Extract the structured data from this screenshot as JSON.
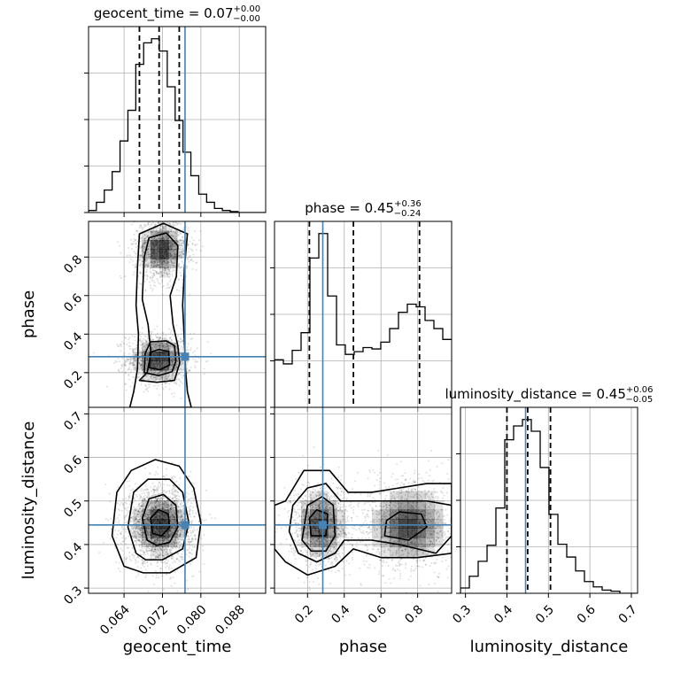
{
  "chart_data": {
    "type": "corner",
    "parameters": [
      "geocent_time",
      "phase",
      "luminosity_distance"
    ],
    "ranges": {
      "geocent_time": [
        0.0566,
        0.0935
      ],
      "phase": [
        0.02,
        0.985
      ],
      "luminosity_distance": [
        0.288,
        0.715
      ]
    },
    "truths": {
      "geocent_time": 0.0767,
      "phase": 0.283,
      "luminosity_distance": 0.445
    },
    "titles": [
      {
        "param": "geocent_time",
        "text": "geocent_time = 0.07",
        "plus": "+0.00",
        "minus": "−0.00"
      },
      {
        "param": "phase",
        "text": "phase = 0.45",
        "plus": "+0.36",
        "minus": "−0.24"
      },
      {
        "param": "luminosity_distance",
        "text": "luminosity_distance = 0.45",
        "plus": "+0.06",
        "minus": "−0.05"
      }
    ],
    "xlabels": [
      "geocent_time",
      "phase",
      "luminosity_distance"
    ],
    "ylabels": [
      "phase",
      "luminosity_distance"
    ],
    "xticks": {
      "geocent_time": [
        0.064,
        0.072,
        0.08,
        0.088
      ],
      "phase": [
        0.2,
        0.4,
        0.6,
        0.8
      ],
      "luminosity_distance": [
        0.3,
        0.4,
        0.5,
        0.6,
        0.7
      ]
    },
    "xtick_labels": {
      "geocent_time": [
        "0.064",
        "0.072",
        "0.080",
        "0.088"
      ],
      "phase": [
        "0.2",
        "0.4",
        "0.6",
        "0.8"
      ],
      "luminosity_distance": [
        "0.3",
        "0.4",
        "0.5",
        "0.6",
        "0.7"
      ]
    },
    "yticks": {
      "phase": [
        0.2,
        0.4,
        0.6,
        0.8
      ],
      "luminosity_distance": [
        0.3,
        0.4,
        0.5,
        0.6,
        0.7
      ]
    },
    "ytick_labels": {
      "phase": [
        "0.2",
        "0.4",
        "0.6",
        "0.8"
      ],
      "luminosity_distance": [
        "0.3",
        "0.4",
        "0.5",
        "0.6",
        "0.7"
      ]
    },
    "quantiles": {
      "geocent_time": [
        0.0672,
        0.0713,
        0.0755
      ],
      "phase": [
        0.21,
        0.45,
        0.81
      ],
      "luminosity_distance": [
        0.4,
        0.45,
        0.505
      ]
    },
    "histograms": {
      "geocent_time": {
        "edges": [
          0.0566,
          0.05824,
          0.05988,
          0.06152,
          0.06316,
          0.0648,
          0.06644,
          0.06808,
          0.06972,
          0.07136,
          0.073,
          0.07464,
          0.07628,
          0.07792,
          0.07956,
          0.0812,
          0.08284,
          0.08448,
          0.08612,
          0.08776,
          0.0894,
          0.09104,
          0.0935
        ],
        "counts": [
          2,
          10,
          22,
          40,
          70,
          100,
          145,
          166,
          170,
          158,
          123,
          90,
          59,
          36,
          18,
          10,
          4,
          2,
          1,
          0,
          0,
          0
        ]
      },
      "phase": {
        "edges": [
          0.02,
          0.0683,
          0.1165,
          0.1648,
          0.213,
          0.2613,
          0.3095,
          0.3578,
          0.406,
          0.4543,
          0.5025,
          0.5508,
          0.599,
          0.6473,
          0.6955,
          0.7438,
          0.792,
          0.8403,
          0.8885,
          0.9368,
          0.985
        ],
        "counts": [
          35,
          32,
          42,
          55,
          110,
          128,
          82,
          46,
          39,
          41,
          44,
          43,
          48,
          58,
          70,
          76,
          74,
          64,
          58,
          50
        ]
      },
      "luminosity_distance": {
        "edges": [
          0.288,
          0.3094,
          0.3307,
          0.3521,
          0.3734,
          0.3948,
          0.4161,
          0.4375,
          0.4588,
          0.4802,
          0.5015,
          0.5229,
          0.5442,
          0.5656,
          0.5869,
          0.6083,
          0.6296,
          0.651,
          0.6723,
          0.6937,
          0.715
        ],
        "counts": [
          5,
          16,
          30,
          45,
          80,
          144,
          157,
          163,
          152,
          118,
          74,
          46,
          34,
          21,
          11,
          6,
          3,
          2,
          0,
          0
        ]
      }
    },
    "density2d": [
      {
        "x": "geocent_time",
        "y": "phase",
        "peaks": [
          [
            0.0713,
            0.27,
            0.0025,
            0.05
          ],
          [
            0.0718,
            0.84,
            0.0021,
            0.06
          ]
        ],
        "contour_levels": [
          [
            [
              0.0652,
              0.02
            ],
            [
              0.066,
              0.1
            ],
            [
              0.0668,
              0.22
            ],
            [
              0.067,
              0.4
            ],
            [
              0.0665,
              0.55
            ],
            [
              0.0668,
              0.75
            ],
            [
              0.0672,
              0.92
            ],
            [
              0.0722,
              0.975
            ],
            [
              0.0772,
              0.92
            ],
            [
              0.0766,
              0.75
            ],
            [
              0.0762,
              0.55
            ],
            [
              0.0765,
              0.4
            ],
            [
              0.0768,
              0.22
            ],
            [
              0.0772,
              0.1
            ],
            [
              0.078,
              0.02
            ]
          ],
          [
            [
              0.0672,
              0.16
            ],
            [
              0.0688,
              0.2
            ],
            [
              0.0696,
              0.3
            ],
            [
              0.069,
              0.45
            ],
            [
              0.0678,
              0.58
            ],
            [
              0.0682,
              0.8
            ],
            [
              0.0692,
              0.9
            ],
            [
              0.0728,
              0.925
            ],
            [
              0.0752,
              0.86
            ],
            [
              0.0749,
              0.7
            ],
            [
              0.0736,
              0.6
            ],
            [
              0.0742,
              0.45
            ],
            [
              0.0752,
              0.34
            ],
            [
              0.0756,
              0.25
            ],
            [
              0.0745,
              0.16
            ],
            [
              0.0708,
              0.15
            ]
          ],
          [
            [
              0.0682,
              0.2
            ],
            [
              0.0684,
              0.3
            ],
            [
              0.0695,
              0.36
            ],
            [
              0.0728,
              0.365
            ],
            [
              0.0745,
              0.34
            ],
            [
              0.0748,
              0.26
            ],
            [
              0.074,
              0.205
            ],
            [
              0.0712,
              0.185
            ]
          ],
          [
            [
              0.0693,
              0.225
            ],
            [
              0.0694,
              0.305
            ],
            [
              0.0712,
              0.32
            ],
            [
              0.0733,
              0.31
            ],
            [
              0.0735,
              0.24
            ],
            [
              0.0715,
              0.215
            ]
          ]
        ]
      },
      {
        "x": "geocent_time",
        "y": "luminosity_distance",
        "peaks": [
          [
            0.0715,
            0.445,
            0.0026,
            0.032
          ]
        ],
        "contour_levels": [
          [
            [
              0.064,
              0.35
            ],
            [
              0.0615,
              0.42
            ],
            [
              0.0625,
              0.52
            ],
            [
              0.0655,
              0.57
            ],
            [
              0.0705,
              0.595
            ],
            [
              0.0755,
              0.58
            ],
            [
              0.0785,
              0.53
            ],
            [
              0.08,
              0.45
            ],
            [
              0.079,
              0.37
            ],
            [
              0.0735,
              0.335
            ],
            [
              0.068,
              0.335
            ]
          ],
          [
            [
              0.0665,
              0.38
            ],
            [
              0.0648,
              0.44
            ],
            [
              0.066,
              0.52
            ],
            [
              0.069,
              0.55
            ],
            [
              0.0735,
              0.55
            ],
            [
              0.0762,
              0.52
            ],
            [
              0.0775,
              0.45
            ],
            [
              0.0762,
              0.39
            ],
            [
              0.072,
              0.365
            ],
            [
              0.0685,
              0.365
            ]
          ],
          [
            [
              0.0688,
              0.41
            ],
            [
              0.0678,
              0.46
            ],
            [
              0.0692,
              0.505
            ],
            [
              0.0722,
              0.515
            ],
            [
              0.0748,
              0.49
            ],
            [
              0.0752,
              0.44
            ],
            [
              0.0735,
              0.405
            ],
            [
              0.0708,
              0.398
            ]
          ],
          [
            [
              0.07,
              0.425
            ],
            [
              0.0695,
              0.46
            ],
            [
              0.0712,
              0.48
            ],
            [
              0.0732,
              0.47
            ],
            [
              0.0735,
              0.44
            ],
            [
              0.0718,
              0.42
            ]
          ]
        ]
      },
      {
        "x": "phase",
        "y": "luminosity_distance",
        "peaks": [
          [
            0.27,
            0.445,
            0.06,
            0.035
          ],
          [
            0.75,
            0.445,
            0.1,
            0.04
          ]
        ],
        "contour_levels": [
          [
            [
              0.02,
              0.39
            ],
            [
              0.08,
              0.36
            ],
            [
              0.2,
              0.33
            ],
            [
              0.35,
              0.35
            ],
            [
              0.45,
              0.39
            ],
            [
              0.6,
              0.37
            ],
            [
              0.8,
              0.37
            ],
            [
              0.985,
              0.38
            ],
            [
              0.985,
              0.54
            ],
            [
              0.85,
              0.54
            ],
            [
              0.7,
              0.53
            ],
            [
              0.55,
              0.52
            ],
            [
              0.42,
              0.52
            ],
            [
              0.32,
              0.57
            ],
            [
              0.18,
              0.57
            ],
            [
              0.08,
              0.5
            ],
            [
              0.02,
              0.49
            ]
          ],
          [
            [
              0.1,
              0.43
            ],
            [
              0.15,
              0.38
            ],
            [
              0.25,
              0.36
            ],
            [
              0.35,
              0.38
            ],
            [
              0.4,
              0.41
            ],
            [
              0.55,
              0.41
            ],
            [
              0.7,
              0.4
            ],
            [
              0.9,
              0.38
            ],
            [
              0.985,
              0.42
            ],
            [
              0.985,
              0.49
            ],
            [
              0.85,
              0.5
            ],
            [
              0.7,
              0.5
            ],
            [
              0.5,
              0.5
            ],
            [
              0.38,
              0.5
            ],
            [
              0.3,
              0.54
            ],
            [
              0.2,
              0.53
            ],
            [
              0.12,
              0.49
            ]
          ],
          [
            [
              0.17,
              0.41
            ],
            [
              0.22,
              0.385
            ],
            [
              0.3,
              0.385
            ],
            [
              0.35,
              0.42
            ],
            [
              0.34,
              0.49
            ],
            [
              0.28,
              0.51
            ],
            [
              0.2,
              0.49
            ]
          ],
          [
            [
              0.62,
              0.42
            ],
            [
              0.75,
              0.41
            ],
            [
              0.85,
              0.44
            ],
            [
              0.82,
              0.47
            ],
            [
              0.7,
              0.475
            ],
            [
              0.63,
              0.455
            ]
          ],
          [
            [
              0.22,
              0.42
            ],
            [
              0.3,
              0.42
            ],
            [
              0.31,
              0.47
            ],
            [
              0.25,
              0.48
            ],
            [
              0.21,
              0.46
            ]
          ]
        ]
      }
    ]
  }
}
